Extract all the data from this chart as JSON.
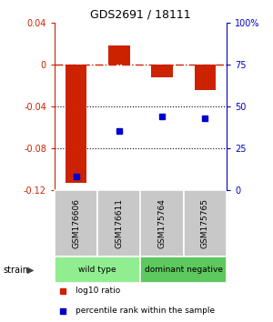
{
  "title": "GDS2691 / 18111",
  "samples": [
    "GSM176606",
    "GSM176611",
    "GSM175764",
    "GSM175765"
  ],
  "log10_ratio": [
    -0.113,
    0.018,
    -0.012,
    -0.025
  ],
  "percentile_rank": [
    8,
    35,
    44,
    43
  ],
  "groups": [
    {
      "label": "wild type",
      "color": "#90ee90",
      "samples": [
        0,
        1
      ]
    },
    {
      "label": "dominant negative",
      "color": "#5dc85d",
      "samples": [
        2,
        3
      ]
    }
  ],
  "ylim_left": [
    -0.12,
    0.04
  ],
  "ylim_right": [
    0,
    100
  ],
  "yticks_left": [
    -0.12,
    -0.08,
    -0.04,
    0.0,
    0.04
  ],
  "yticks_right": [
    0,
    25,
    50,
    75,
    100
  ],
  "bar_color": "#cc2200",
  "dot_color": "#0000cc",
  "hline_color": "#cc2200",
  "dotted_lines": [
    -0.04,
    -0.08
  ],
  "background_color": "#ffffff",
  "strain_label": "strain",
  "legend_items": [
    {
      "color": "#cc2200",
      "label": "log10 ratio"
    },
    {
      "color": "#0000cc",
      "label": "percentile rank within the sample"
    }
  ]
}
